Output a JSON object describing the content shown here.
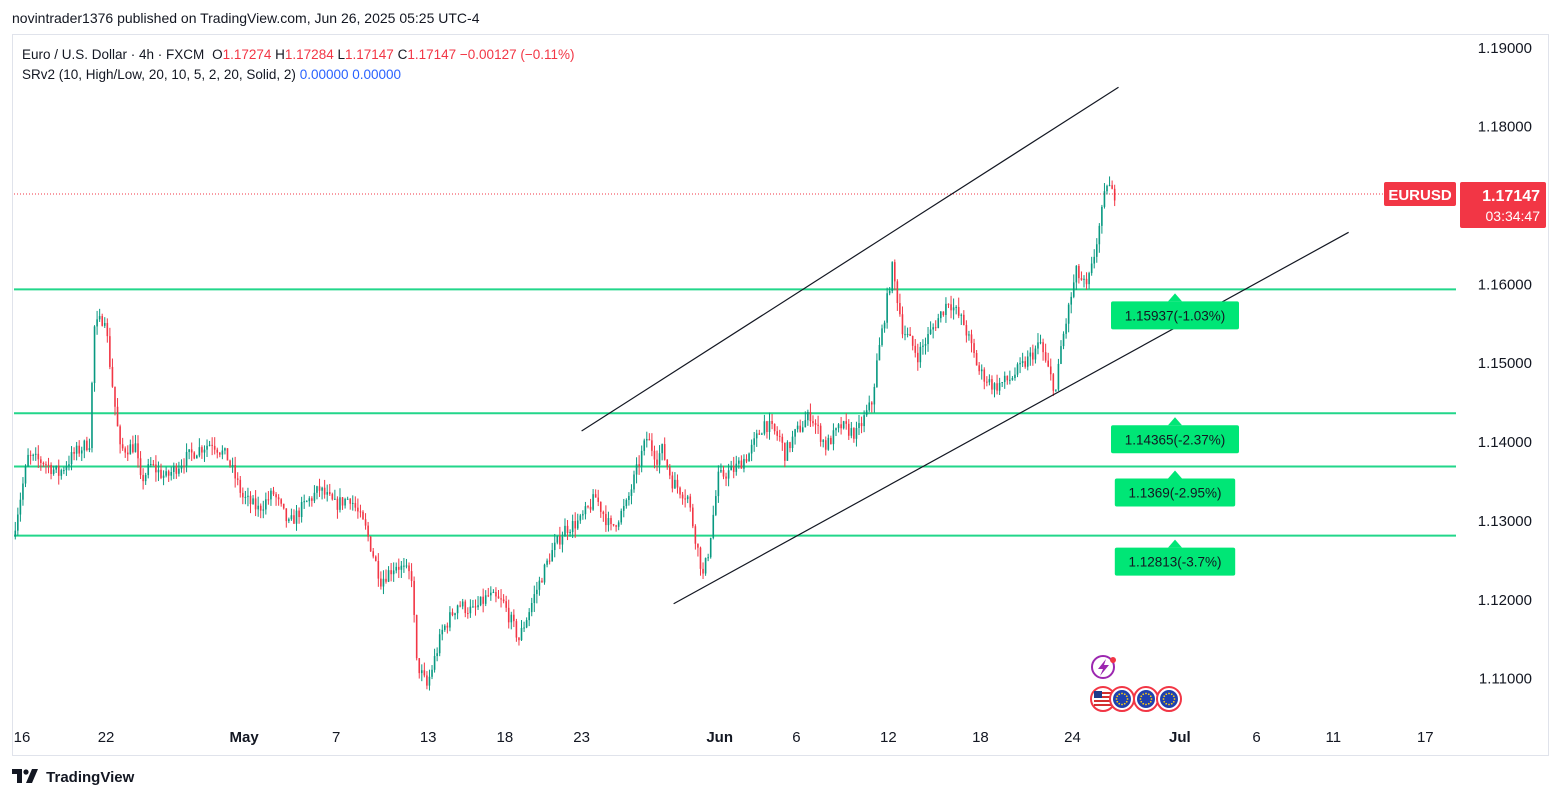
{
  "publish_line": "novintrader1376 published on TradingView.com, Jun 26, 2025 05:25 UTC-4",
  "legend": {
    "title": "Euro / U.S. Dollar · 4h · FXCM",
    "o_label": "O",
    "o_value": "1.17274",
    "h_label": "H",
    "h_value": "1.17284",
    "l_label": "L",
    "l_value": "1.17147",
    "c_label": "C",
    "c_value": "1.17147",
    "change": "−0.00127 (−0.11%)",
    "indicator": "SRv2 (10, High/Low, 20, 10, 5, 2, 20, Solid, 2)",
    "ind_value_1": "0.00000",
    "ind_value_2": "0.00000"
  },
  "price_badge": {
    "symbol": "EURUSD",
    "price": "1.17147",
    "countdown": "03:34:47",
    "price_value": 1.17147
  },
  "footer": {
    "brand": "TradingView"
  },
  "colors": {
    "up": "#089981",
    "down": "#f23645",
    "level_line": "#22d68a",
    "level_label_bg": "#00e676",
    "badge": "#f23645"
  },
  "icons": [
    "lightning-icon",
    "us-flag-icon",
    "eu-flag-icon",
    "eu-flag-icon",
    "eu-flag-icon"
  ],
  "chart_data": {
    "type": "candlestick",
    "y_axis_ticks": [
      "1.19000",
      "1.18000",
      "1.16000",
      "1.15000",
      "1.14000",
      "1.13000",
      "1.12000",
      "1.11000"
    ],
    "y_axis_values": [
      1.19,
      1.18,
      1.16,
      1.15,
      1.14,
      1.13,
      1.12,
      1.11
    ],
    "ylim": [
      1.1045,
      1.1915
    ],
    "x_axis_ticks": [
      "16",
      "22",
      "May",
      "7",
      "13",
      "18",
      "23",
      "Jun",
      "6",
      "12",
      "18",
      "24",
      "Jul",
      "6",
      "11",
      "17"
    ],
    "x_axis_dates": [
      "2025-04-16",
      "2025-04-22",
      "2025-05-01",
      "2025-05-07",
      "2025-05-13",
      "2025-05-18",
      "2025-05-23",
      "2025-06-01",
      "2025-06-06",
      "2025-06-12",
      "2025-06-18",
      "2025-06-24",
      "2025-07-01",
      "2025-07-06",
      "2025-07-11",
      "2025-07-17"
    ],
    "xlim": [
      "2025-04-16",
      "2025-07-19"
    ],
    "levels": [
      {
        "label": "1.15937(-1.03%)",
        "value": 1.15937
      },
      {
        "label": "1.14365(-2.37%)",
        "value": 1.14365
      },
      {
        "label": "1.1369(-2.95%)",
        "value": 1.1369
      },
      {
        "label": "1.12813(-3.7%)",
        "value": 1.12813
      }
    ],
    "channel": {
      "upper": [
        [
          "2025-05-23",
          1.1414
        ],
        [
          "2025-06-27",
          1.185
        ]
      ],
      "lower": [
        [
          "2025-05-29",
          1.1195
        ],
        [
          "2025-07-12",
          1.1666
        ]
      ]
    },
    "price_path": [
      [
        "2025-04-16",
        1.128
      ],
      [
        "2025-04-17",
        1.138
      ],
      [
        "2025-04-18",
        1.1375
      ],
      [
        "2025-04-19",
        1.136
      ],
      [
        "2025-04-20",
        1.1385
      ],
      [
        "2025-04-21",
        1.14
      ],
      [
        "2025-04-21",
        1.1545
      ],
      [
        "2025-04-22",
        1.156
      ],
      [
        "2025-04-22",
        1.15
      ],
      [
        "2025-04-23",
        1.139
      ],
      [
        "2025-04-24",
        1.1395
      ],
      [
        "2025-04-24",
        1.135
      ],
      [
        "2025-04-25",
        1.137
      ],
      [
        "2025-04-26",
        1.1355
      ],
      [
        "2025-04-27",
        1.1375
      ],
      [
        "2025-04-28",
        1.139
      ],
      [
        "2025-04-29",
        1.14
      ],
      [
        "2025-04-30",
        1.138
      ],
      [
        "2025-05-01",
        1.133
      ],
      [
        "2025-05-02",
        1.1315
      ],
      [
        "2025-05-03",
        1.1335
      ],
      [
        "2025-05-04",
        1.1295
      ],
      [
        "2025-05-05",
        1.132
      ],
      [
        "2025-05-06",
        1.134
      ],
      [
        "2025-05-07",
        1.132
      ],
      [
        "2025-05-08",
        1.133
      ],
      [
        "2025-05-09",
        1.129
      ],
      [
        "2025-05-10",
        1.1225
      ],
      [
        "2025-05-11",
        1.1245
      ],
      [
        "2025-05-12",
        1.123
      ],
      [
        "2025-05-12",
        1.112
      ],
      [
        "2025-05-13",
        1.109
      ],
      [
        "2025-05-14",
        1.116
      ],
      [
        "2025-05-15",
        1.1195
      ],
      [
        "2025-05-16",
        1.1185
      ],
      [
        "2025-05-17",
        1.1205
      ],
      [
        "2025-05-18",
        1.1195
      ],
      [
        "2025-05-19",
        1.115
      ],
      [
        "2025-05-20",
        1.1205
      ],
      [
        "2025-05-21",
        1.1255
      ],
      [
        "2025-05-22",
        1.129
      ],
      [
        "2025-05-23",
        1.13
      ],
      [
        "2025-05-24",
        1.133
      ],
      [
        "2025-05-25",
        1.129
      ],
      [
        "2025-05-26",
        1.132
      ],
      [
        "2025-05-27",
        1.1385
      ],
      [
        "2025-05-27",
        1.1405
      ],
      [
        "2025-05-28",
        1.138
      ],
      [
        "2025-05-28",
        1.139
      ],
      [
        "2025-05-29",
        1.135
      ],
      [
        "2025-05-30",
        1.133
      ],
      [
        "2025-05-31",
        1.123
      ],
      [
        "2025-05-31",
        1.126
      ],
      [
        "2025-06-01",
        1.1355
      ],
      [
        "2025-06-02",
        1.1365
      ],
      [
        "2025-06-03",
        1.1385
      ],
      [
        "2025-06-04",
        1.1425
      ],
      [
        "2025-06-05",
        1.1405
      ],
      [
        "2025-06-05",
        1.1385
      ],
      [
        "2025-06-06",
        1.141
      ],
      [
        "2025-06-07",
        1.1435
      ],
      [
        "2025-06-08",
        1.1395
      ],
      [
        "2025-06-09",
        1.142
      ],
      [
        "2025-06-10",
        1.141
      ],
      [
        "2025-06-11",
        1.145
      ],
      [
        "2025-06-11",
        1.15
      ],
      [
        "2025-06-12",
        1.158
      ],
      [
        "2025-06-12",
        1.162
      ],
      [
        "2025-06-13",
        1.1545
      ],
      [
        "2025-06-14",
        1.151
      ],
      [
        "2025-06-15",
        1.1545
      ],
      [
        "2025-06-16",
        1.158
      ],
      [
        "2025-06-17",
        1.155
      ],
      [
        "2025-06-18",
        1.149
      ],
      [
        "2025-06-19",
        1.147
      ],
      [
        "2025-06-20",
        1.148
      ],
      [
        "2025-06-21",
        1.15
      ],
      [
        "2025-06-22",
        1.1525
      ],
      [
        "2025-06-22",
        1.15
      ],
      [
        "2025-06-23",
        1.1465
      ],
      [
        "2025-06-23",
        1.152
      ],
      [
        "2025-06-24",
        1.1585
      ],
      [
        "2025-06-24",
        1.1615
      ],
      [
        "2025-06-25",
        1.1595
      ],
      [
        "2025-06-25",
        1.162
      ],
      [
        "2025-06-26",
        1.169
      ],
      [
        "2025-06-26",
        1.173
      ],
      [
        "2025-06-26",
        1.17147
      ]
    ]
  }
}
